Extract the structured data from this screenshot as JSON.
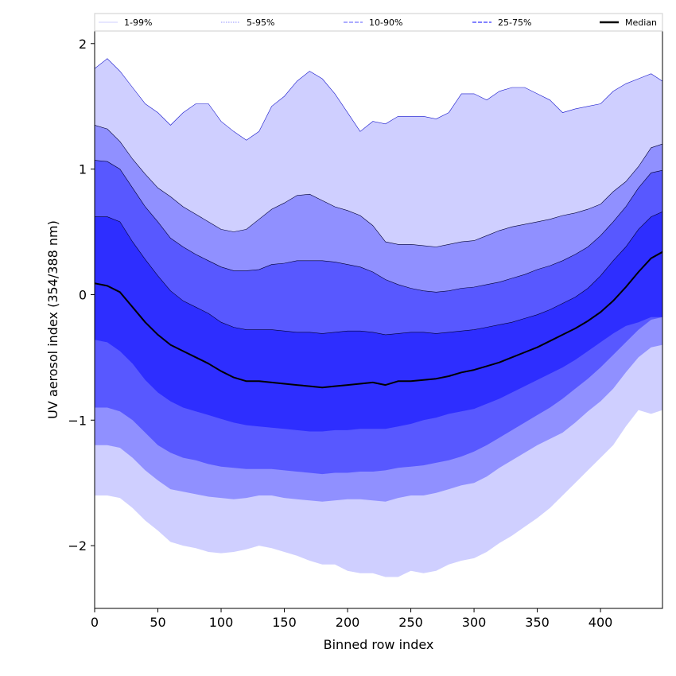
{
  "chart_data": {
    "type": "area",
    "title": "",
    "xlabel": "Binned row index",
    "ylabel": "UV aerosol index (354/388 nm)",
    "xlim": [
      0,
      449
    ],
    "ylim": [
      -2.5,
      2.1
    ],
    "xticks": [
      0,
      50,
      100,
      150,
      200,
      250,
      300,
      350,
      400
    ],
    "yticks": [
      -2,
      -1,
      0,
      1,
      2
    ],
    "grid": false,
    "legend_position": "top",
    "x": [
      0,
      10,
      20,
      30,
      40,
      50,
      60,
      70,
      80,
      90,
      100,
      110,
      120,
      130,
      140,
      150,
      160,
      170,
      180,
      190,
      200,
      210,
      220,
      230,
      240,
      250,
      260,
      270,
      280,
      290,
      300,
      310,
      320,
      330,
      340,
      350,
      360,
      370,
      380,
      390,
      400,
      410,
      420,
      430,
      440,
      449
    ],
    "bands": [
      {
        "name": "1-99%",
        "color": "#cfcfff",
        "upper": [
          1.8,
          1.88,
          1.78,
          1.65,
          1.52,
          1.45,
          1.35,
          1.45,
          1.52,
          1.52,
          1.38,
          1.3,
          1.23,
          1.3,
          1.5,
          1.58,
          1.7,
          1.78,
          1.72,
          1.6,
          1.45,
          1.3,
          1.38,
          1.36,
          1.42,
          1.42,
          1.42,
          1.4,
          1.45,
          1.6,
          1.6,
          1.55,
          1.62,
          1.65,
          1.65,
          1.6,
          1.55,
          1.45,
          1.48,
          1.5,
          1.52,
          1.62,
          1.68,
          1.72,
          1.76,
          1.7
        ],
        "lower": [
          -1.6,
          -1.6,
          -1.62,
          -1.7,
          -1.8,
          -1.88,
          -1.97,
          -2.0,
          -2.02,
          -2.05,
          -2.06,
          -2.05,
          -2.03,
          -2.0,
          -2.02,
          -2.05,
          -2.08,
          -2.12,
          -2.15,
          -2.15,
          -2.2,
          -2.22,
          -2.22,
          -2.25,
          -2.25,
          -2.2,
          -2.22,
          -2.2,
          -2.15,
          -2.12,
          -2.1,
          -2.05,
          -1.98,
          -1.92,
          -1.85,
          -1.78,
          -1.7,
          -1.6,
          -1.5,
          -1.4,
          -1.3,
          -1.2,
          -1.05,
          -0.92,
          -0.95,
          -0.92
        ]
      },
      {
        "name": "5-95%",
        "color": "#9090ff",
        "upper": [
          1.35,
          1.32,
          1.22,
          1.08,
          0.96,
          0.85,
          0.78,
          0.7,
          0.64,
          0.58,
          0.52,
          0.5,
          0.52,
          0.6,
          0.68,
          0.73,
          0.79,
          0.8,
          0.75,
          0.7,
          0.67,
          0.63,
          0.55,
          0.42,
          0.4,
          0.4,
          0.39,
          0.38,
          0.4,
          0.42,
          0.43,
          0.47,
          0.51,
          0.54,
          0.56,
          0.58,
          0.6,
          0.63,
          0.65,
          0.68,
          0.72,
          0.82,
          0.9,
          1.02,
          1.17,
          1.2
        ],
        "lower": [
          -1.2,
          -1.2,
          -1.22,
          -1.3,
          -1.4,
          -1.48,
          -1.55,
          -1.57,
          -1.59,
          -1.61,
          -1.62,
          -1.63,
          -1.62,
          -1.6,
          -1.6,
          -1.62,
          -1.63,
          -1.64,
          -1.65,
          -1.64,
          -1.63,
          -1.63,
          -1.64,
          -1.65,
          -1.62,
          -1.6,
          -1.6,
          -1.58,
          -1.55,
          -1.52,
          -1.5,
          -1.45,
          -1.38,
          -1.32,
          -1.26,
          -1.2,
          -1.15,
          -1.1,
          -1.02,
          -0.93,
          -0.85,
          -0.75,
          -0.62,
          -0.5,
          -0.42,
          -0.4
        ]
      },
      {
        "name": "10-90%",
        "color": "#5858ff",
        "upper": [
          1.07,
          1.06,
          1.0,
          0.85,
          0.7,
          0.58,
          0.45,
          0.38,
          0.32,
          0.27,
          0.22,
          0.19,
          0.19,
          0.2,
          0.24,
          0.25,
          0.27,
          0.27,
          0.27,
          0.26,
          0.24,
          0.22,
          0.18,
          0.12,
          0.08,
          0.05,
          0.03,
          0.02,
          0.03,
          0.05,
          0.06,
          0.08,
          0.1,
          0.13,
          0.16,
          0.2,
          0.23,
          0.27,
          0.32,
          0.38,
          0.47,
          0.58,
          0.7,
          0.85,
          0.97,
          0.99
        ],
        "lower": [
          -0.9,
          -0.9,
          -0.93,
          -1.0,
          -1.1,
          -1.2,
          -1.26,
          -1.3,
          -1.32,
          -1.35,
          -1.37,
          -1.38,
          -1.39,
          -1.39,
          -1.39,
          -1.4,
          -1.41,
          -1.42,
          -1.43,
          -1.42,
          -1.42,
          -1.41,
          -1.41,
          -1.4,
          -1.38,
          -1.37,
          -1.36,
          -1.34,
          -1.32,
          -1.29,
          -1.25,
          -1.2,
          -1.14,
          -1.08,
          -1.02,
          -0.96,
          -0.9,
          -0.83,
          -0.75,
          -0.67,
          -0.58,
          -0.48,
          -0.38,
          -0.28,
          -0.2,
          -0.18
        ]
      },
      {
        "name": "25-75%",
        "color": "#2e2eff",
        "upper": [
          0.62,
          0.62,
          0.58,
          0.42,
          0.28,
          0.15,
          0.03,
          -0.05,
          -0.1,
          -0.15,
          -0.22,
          -0.26,
          -0.28,
          -0.28,
          -0.28,
          -0.29,
          -0.3,
          -0.3,
          -0.31,
          -0.3,
          -0.29,
          -0.29,
          -0.3,
          -0.32,
          -0.31,
          -0.3,
          -0.3,
          -0.31,
          -0.3,
          -0.29,
          -0.28,
          -0.26,
          -0.24,
          -0.22,
          -0.19,
          -0.16,
          -0.12,
          -0.07,
          -0.02,
          0.05,
          0.15,
          0.27,
          0.38,
          0.52,
          0.62,
          0.66
        ],
        "lower": [
          -0.36,
          -0.38,
          -0.45,
          -0.55,
          -0.68,
          -0.78,
          -0.85,
          -0.9,
          -0.93,
          -0.96,
          -0.99,
          -1.02,
          -1.04,
          -1.05,
          -1.06,
          -1.07,
          -1.08,
          -1.09,
          -1.09,
          -1.08,
          -1.08,
          -1.07,
          -1.07,
          -1.07,
          -1.05,
          -1.03,
          -1.0,
          -0.98,
          -0.95,
          -0.93,
          -0.91,
          -0.87,
          -0.83,
          -0.78,
          -0.73,
          -0.68,
          -0.63,
          -0.58,
          -0.52,
          -0.45,
          -0.38,
          -0.31,
          -0.25,
          -0.22,
          -0.18,
          -0.18
        ]
      }
    ],
    "median": {
      "name": "Median",
      "color": "#000000",
      "values": [
        0.09,
        0.07,
        0.02,
        -0.1,
        -0.22,
        -0.32,
        -0.4,
        -0.45,
        -0.5,
        -0.55,
        -0.61,
        -0.66,
        -0.69,
        -0.69,
        -0.7,
        -0.71,
        -0.72,
        -0.73,
        -0.74,
        -0.73,
        -0.72,
        -0.71,
        -0.7,
        -0.72,
        -0.69,
        -0.69,
        -0.68,
        -0.67,
        -0.65,
        -0.62,
        -0.6,
        -0.57,
        -0.54,
        -0.5,
        -0.46,
        -0.42,
        -0.37,
        -0.32,
        -0.27,
        -0.21,
        -0.14,
        -0.05,
        0.06,
        0.18,
        0.29,
        0.34
      ]
    },
    "legend": [
      {
        "label": "1-99%",
        "style": "thin-solid",
        "color": "#cfcfff"
      },
      {
        "label": "5-95%",
        "style": "thin-dotted",
        "color": "#9090ff"
      },
      {
        "label": "10-90%",
        "style": "dashed",
        "color": "#9090ff"
      },
      {
        "label": "25-75%",
        "style": "dashed",
        "color": "#5858ff"
      },
      {
        "label": "Median",
        "style": "solid",
        "color": "#000000"
      }
    ]
  }
}
